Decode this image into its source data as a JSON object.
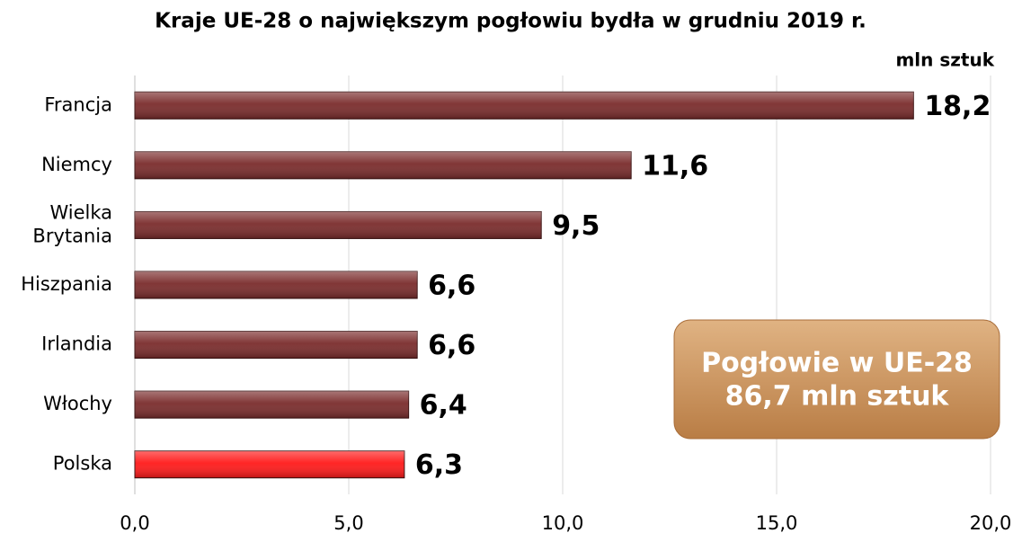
{
  "chart_data": {
    "type": "barh",
    "title": "Kraje UE-28 o największym pogłowiu bydła w grudniu 2019 r.",
    "unit_label": "mln sztuk",
    "categories": [
      "Francja",
      "Niemcy",
      "Wielka Brytania",
      "Hiszpania",
      "Irlandia",
      "Włochy",
      "Polska"
    ],
    "values": [
      18.2,
      11.6,
      9.5,
      6.6,
      6.6,
      6.4,
      6.3
    ],
    "value_labels": [
      "18,2",
      "11,6",
      "9,5",
      "6,6",
      "6,6",
      "6,4",
      "6,3"
    ],
    "colors": [
      "#7a2c2c",
      "#7a2c2c",
      "#7a2c2c",
      "#7a2c2c",
      "#7a2c2c",
      "#7a2c2c",
      "#ff1a1a"
    ],
    "xlim": [
      0,
      20
    ],
    "xticks": [
      {
        "value": 0,
        "label": "0,0"
      },
      {
        "value": 5,
        "label": "5,0"
      },
      {
        "value": 10,
        "label": "10,0"
      },
      {
        "value": 15,
        "label": "15,0"
      },
      {
        "value": 20,
        "label": "20,0"
      }
    ],
    "grid": true,
    "annotation": [
      "Pogłowie w UE-28",
      "86,7 mln sztuk"
    ]
  }
}
